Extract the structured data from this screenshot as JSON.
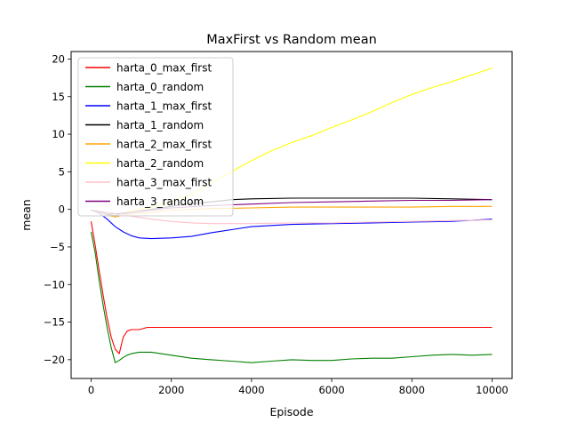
{
  "chart_data": {
    "type": "line",
    "title": "MaxFirst vs Random mean",
    "xlabel": "Episode",
    "ylabel": "mean",
    "xlim": [
      -500,
      10500
    ],
    "ylim": [
      -22.5,
      21
    ],
    "xticks": [
      0,
      2000,
      4000,
      6000,
      8000,
      10000
    ],
    "xtick_labels": [
      "0",
      "2000",
      "4000",
      "6000",
      "8000",
      "10000"
    ],
    "yticks": [
      -20,
      -15,
      -10,
      -5,
      0,
      5,
      10,
      15,
      20
    ],
    "ytick_labels": [
      "−20",
      "−15",
      "−10",
      "−5",
      "0",
      "5",
      "10",
      "15",
      "20"
    ],
    "grid": false,
    "legend_position": "upper-left",
    "series": [
      {
        "name": "harta_0_max_first",
        "color": "#ff0000",
        "x": [
          0,
          100,
          200,
          300,
          400,
          500,
          600,
          700,
          800,
          900,
          1000,
          1200,
          1400,
          1600,
          2000,
          3000,
          4000,
          5000,
          6000,
          7000,
          8000,
          9000,
          10000
        ],
        "y": [
          -1.6,
          -4.8,
          -8.2,
          -11.5,
          -14.5,
          -17.0,
          -18.6,
          -19.2,
          -17.0,
          -16.2,
          -16.0,
          -16.0,
          -15.7,
          -15.7,
          -15.7,
          -15.7,
          -15.7,
          -15.7,
          -15.7,
          -15.7,
          -15.7,
          -15.7,
          -15.7
        ]
      },
      {
        "name": "harta_0_random",
        "color": "#008000",
        "x": [
          0,
          100,
          200,
          300,
          400,
          500,
          600,
          700,
          800,
          900,
          1000,
          1200,
          1500,
          2000,
          2500,
          3000,
          3500,
          4000,
          4500,
          5000,
          5500,
          6000,
          6500,
          7000,
          7500,
          8000,
          8500,
          9000,
          9500,
          10000
        ],
        "y": [
          -3.0,
          -5.8,
          -9.5,
          -12.8,
          -15.8,
          -18.4,
          -20.4,
          -20.1,
          -19.7,
          -19.4,
          -19.2,
          -19.0,
          -19.0,
          -19.4,
          -19.8,
          -20.0,
          -20.2,
          -20.4,
          -20.2,
          -20.0,
          -20.1,
          -20.1,
          -19.9,
          -19.8,
          -19.8,
          -19.6,
          -19.4,
          -19.3,
          -19.4,
          -19.3
        ]
      },
      {
        "name": "harta_1_max_first",
        "color": "#0000ff",
        "x": [
          0,
          200,
          400,
          600,
          800,
          1000,
          1200,
          1500,
          2000,
          2500,
          3000,
          3500,
          4000,
          5000,
          6000,
          7000,
          8000,
          9000,
          10000
        ],
        "y": [
          -0.1,
          -0.5,
          -1.3,
          -2.3,
          -3.0,
          -3.5,
          -3.8,
          -3.9,
          -3.8,
          -3.6,
          -3.1,
          -2.7,
          -2.3,
          -2.0,
          -1.9,
          -1.8,
          -1.7,
          -1.6,
          -1.3
        ]
      },
      {
        "name": "harta_1_random",
        "color": "#000000",
        "x": [
          0,
          200,
          400,
          600,
          800,
          1000,
          1500,
          2000,
          2500,
          3000,
          3500,
          4000,
          5000,
          6000,
          7000,
          8000,
          9000,
          10000
        ],
        "y": [
          -0.1,
          -0.4,
          -0.7,
          -0.8,
          -0.6,
          -0.4,
          0.0,
          0.4,
          0.8,
          1.0,
          1.3,
          1.4,
          1.5,
          1.5,
          1.5,
          1.5,
          1.4,
          1.3
        ]
      },
      {
        "name": "harta_2_max_first",
        "color": "#ffa500",
        "x": [
          0,
          200,
          400,
          600,
          800,
          1000,
          1500,
          2000,
          3000,
          4000,
          5000,
          6000,
          7000,
          8000,
          9000,
          10000
        ],
        "y": [
          -0.1,
          -0.4,
          -0.8,
          -1.0,
          -0.8,
          -0.6,
          -0.4,
          -0.1,
          0.1,
          0.2,
          0.3,
          0.3,
          0.3,
          0.3,
          0.4,
          0.4
        ]
      },
      {
        "name": "harta_2_random",
        "color": "#ffff00",
        "x": [
          0,
          200,
          400,
          600,
          800,
          1000,
          1500,
          2000,
          2500,
          3000,
          3500,
          4000,
          4500,
          5000,
          5500,
          6000,
          6500,
          7000,
          7500,
          8000,
          8500,
          9000,
          9500,
          10000
        ],
        "y": [
          -0.1,
          -0.2,
          -0.5,
          -0.7,
          -0.5,
          -0.2,
          0.3,
          1.0,
          2.0,
          3.5,
          5.0,
          6.5,
          7.8,
          8.9,
          9.8,
          10.9,
          11.9,
          13.0,
          14.2,
          15.3,
          16.2,
          17.0,
          17.9,
          18.8
        ]
      },
      {
        "name": "harta_3_max_first",
        "color": "#ffc0cb",
        "x": [
          0,
          500,
          1000,
          1500,
          2000,
          2500,
          3000,
          4000,
          5000,
          6000,
          7000,
          8000,
          9000,
          10000
        ],
        "y": [
          -0.1,
          -0.4,
          -0.9,
          -1.3,
          -1.6,
          -1.8,
          -1.9,
          -1.9,
          -1.8,
          -1.8,
          -1.7,
          -1.6,
          -1.5,
          -1.4
        ]
      },
      {
        "name": "harta_3_random",
        "color": "#800080",
        "x": [
          0,
          200,
          400,
          600,
          800,
          1000,
          1500,
          2000,
          3000,
          4000,
          5000,
          6000,
          7000,
          8000,
          9000,
          10000
        ],
        "y": [
          -0.1,
          -0.3,
          -0.5,
          -0.6,
          -0.5,
          -0.4,
          -0.1,
          0.2,
          0.5,
          0.7,
          0.9,
          1.0,
          1.1,
          1.2,
          1.2,
          1.3
        ]
      }
    ]
  }
}
